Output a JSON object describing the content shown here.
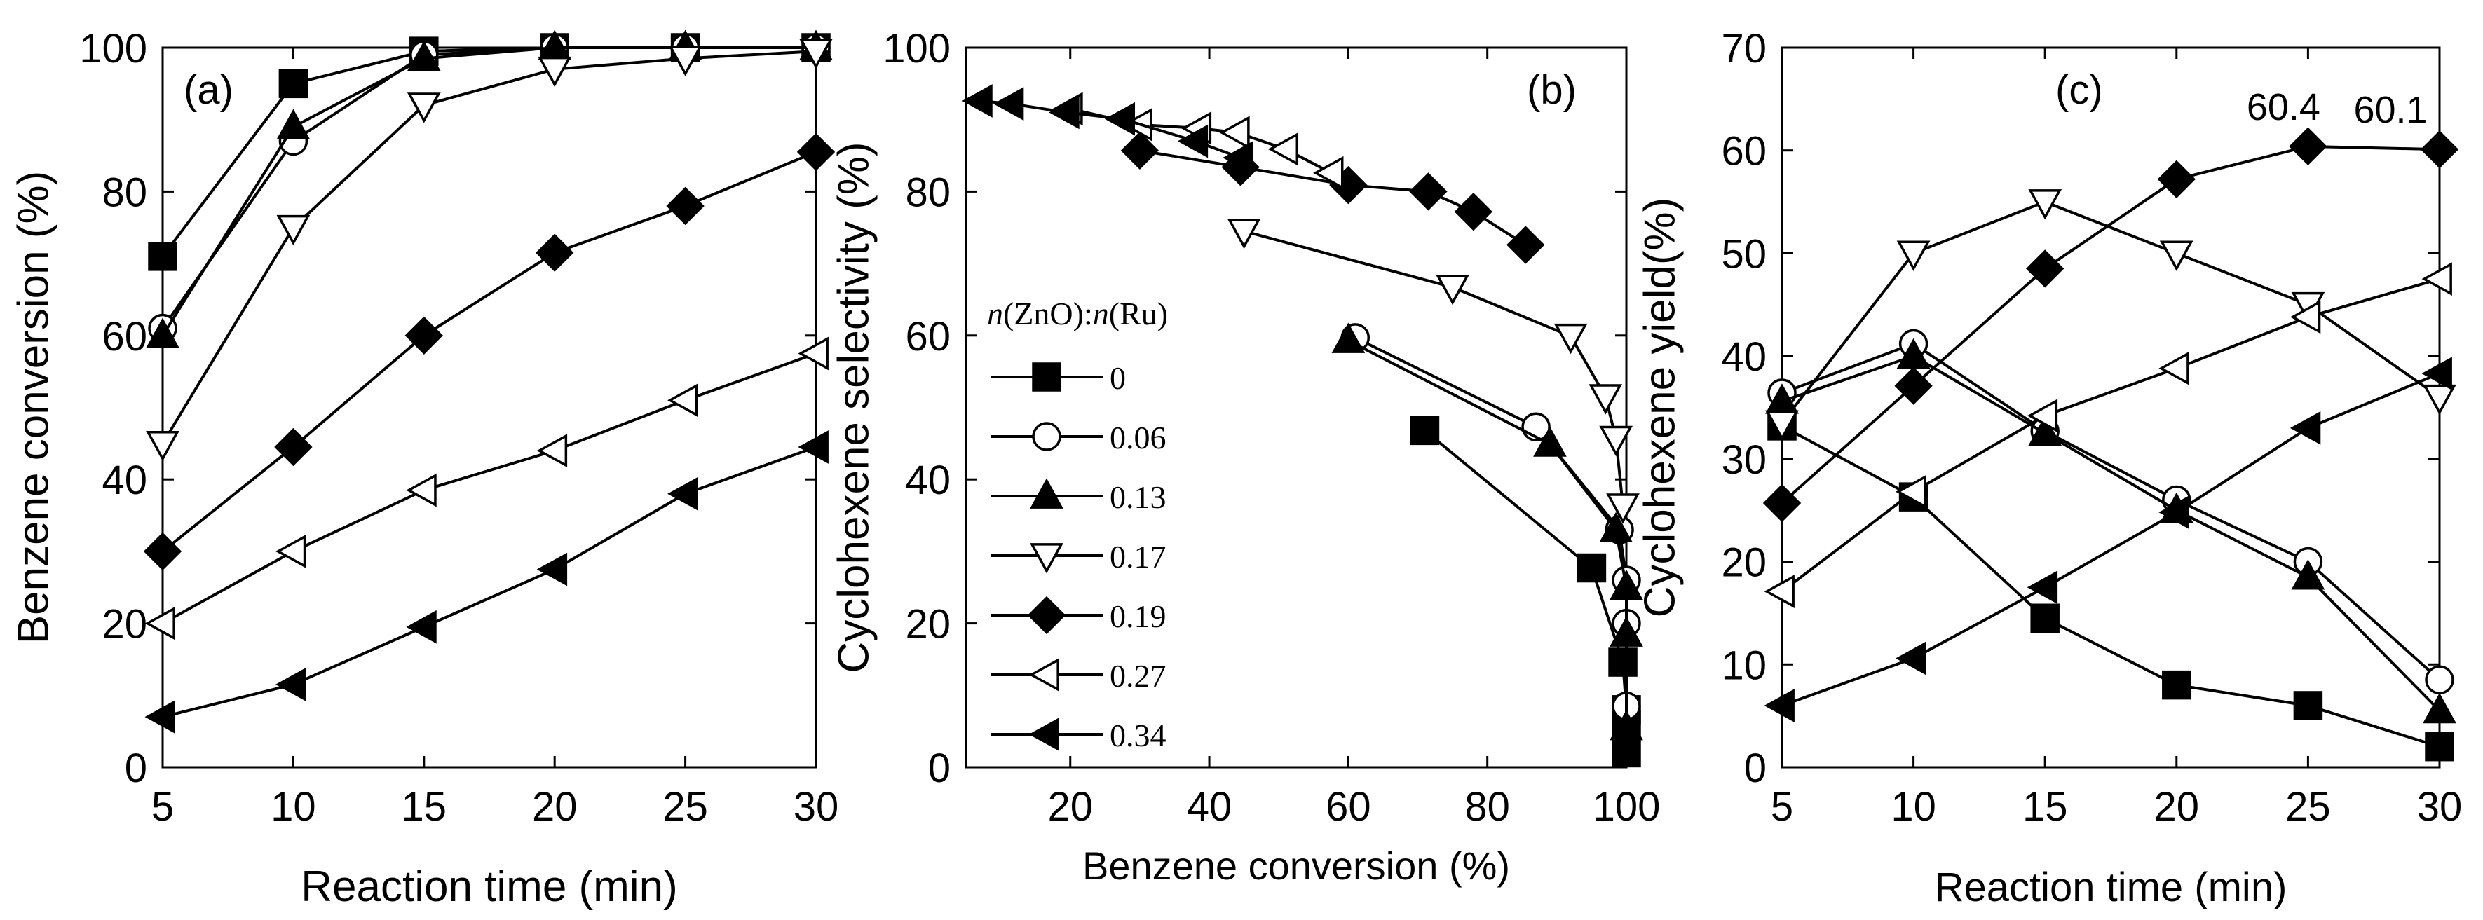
{
  "chart_data": [
    {
      "id": "a",
      "type": "line",
      "panel_label": "(a)",
      "xlabel": "Reaction time (min)",
      "ylabel": "Benzene conversion (%)",
      "xlim": [
        5,
        30
      ],
      "ylim": [
        0,
        100
      ],
      "xticks": [
        5,
        10,
        15,
        20,
        25,
        30
      ],
      "yticks": [
        0,
        20,
        40,
        60,
        80,
        100
      ],
      "x": [
        5,
        10,
        15,
        20,
        25,
        30
      ],
      "series": [
        {
          "name": "0",
          "marker": "square",
          "values": [
            71,
            95,
            99.5,
            100,
            100,
            100
          ]
        },
        {
          "name": "0.06",
          "marker": "circle",
          "values": [
            61,
            87,
            99,
            100,
            100,
            100
          ]
        },
        {
          "name": "0.13",
          "marker": "triangle-up",
          "values": [
            60,
            89,
            98.5,
            100,
            100,
            100
          ]
        },
        {
          "name": "0.17",
          "marker": "triangle-down",
          "values": [
            45,
            75,
            92,
            97,
            98.5,
            99.5
          ]
        },
        {
          "name": "0.19",
          "marker": "diamond",
          "values": [
            30,
            44.5,
            60,
            71.5,
            78,
            85.5
          ]
        },
        {
          "name": "0.27",
          "marker": "triangle-left",
          "values": [
            20,
            30,
            38.5,
            44,
            51,
            57.5
          ]
        },
        {
          "name": "0.34",
          "marker": "triangle-left-filled",
          "values": [
            7,
            11.5,
            19.5,
            27.5,
            38,
            44.5
          ]
        }
      ]
    },
    {
      "id": "b",
      "type": "line",
      "panel_label": "(b)",
      "xlabel": "Benzene conversion (%)",
      "ylabel": "Cyclohexene selectivity (%)",
      "xlim": [
        5,
        100
      ],
      "ylim": [
        0,
        100
      ],
      "xticks": [
        20,
        40,
        60,
        80,
        100
      ],
      "yticks": [
        0,
        20,
        40,
        60,
        80,
        100
      ],
      "legend_title": "n(ZnO):n(Ru)",
      "legend_position": "center-left",
      "series": [
        {
          "name": "0",
          "marker": "square",
          "points": [
            [
              71,
              46.8
            ],
            [
              95,
              27.7
            ],
            [
              99.5,
              14.6
            ],
            [
              100,
              8
            ],
            [
              100,
              6
            ],
            [
              100,
              2
            ]
          ]
        },
        {
          "name": "0.06",
          "marker": "circle",
          "points": [
            [
              61,
              59.7
            ],
            [
              87,
              47.3
            ],
            [
              99,
              33
            ],
            [
              100,
              26
            ],
            [
              100,
              20
            ],
            [
              100,
              8.5
            ]
          ]
        },
        {
          "name": "0.13",
          "marker": "triangle-up",
          "points": [
            [
              60,
              59.3
            ],
            [
              89,
              44.9
            ],
            [
              98.5,
              33
            ],
            [
              100,
              25
            ],
            [
              100,
              18.5
            ],
            [
              100,
              5.5
            ]
          ]
        },
        {
          "name": "0.17",
          "marker": "triangle-down",
          "points": [
            [
              45,
              74.5
            ],
            [
              75,
              66.7
            ],
            [
              92,
              59.9
            ],
            [
              97,
              51.5
            ],
            [
              98.5,
              45.7
            ],
            [
              99.5,
              36.3
            ]
          ]
        },
        {
          "name": "0.19",
          "marker": "diamond",
          "points": [
            [
              30,
              85.7
            ],
            [
              44.5,
              83.4
            ],
            [
              60,
              80.9
            ],
            [
              71.5,
              80
            ],
            [
              78,
              77.2
            ],
            [
              85.5,
              72.6
            ]
          ]
        },
        {
          "name": "0.27",
          "marker": "triangle-left",
          "points": [
            [
              20,
              91.5
            ],
            [
              30,
              89.3
            ],
            [
              38.5,
              88.8
            ],
            [
              44,
              88.2
            ],
            [
              51,
              85.9
            ],
            [
              57.5,
              82.6
            ]
          ]
        },
        {
          "name": "0.34",
          "marker": "triangle-left-filled",
          "points": [
            [
              7,
              92.6
            ],
            [
              11.5,
              92.2
            ],
            [
              19.5,
              91
            ],
            [
              27.5,
              90.1
            ],
            [
              38,
              87
            ],
            [
              44.5,
              84.7
            ]
          ]
        }
      ]
    },
    {
      "id": "c",
      "type": "line",
      "panel_label": "(c)",
      "xlabel": "Reaction time (min)",
      "ylabel": "Cyclohexene yield(%)",
      "xlim": [
        5,
        30
      ],
      "ylim": [
        0,
        70
      ],
      "xticks": [
        5,
        10,
        15,
        20,
        25,
        30
      ],
      "yticks": [
        0,
        10,
        20,
        30,
        40,
        50,
        60,
        70
      ],
      "x": [
        5,
        10,
        15,
        20,
        25,
        30
      ],
      "annotations": [
        {
          "text": "60.4",
          "x": 25,
          "y": 60.4
        },
        {
          "text": "60.1",
          "x": 30,
          "y": 60.1
        }
      ],
      "series": [
        {
          "name": "0",
          "marker": "square",
          "values": [
            33.2,
            26.3,
            14.5,
            8,
            6,
            2
          ]
        },
        {
          "name": "0.06",
          "marker": "circle",
          "values": [
            36.4,
            41.2,
            32.7,
            26,
            20,
            8.5
          ]
        },
        {
          "name": "0.13",
          "marker": "triangle-up",
          "values": [
            35.6,
            40,
            32.5,
            25,
            18.5,
            5.5
          ]
        },
        {
          "name": "0.17",
          "marker": "triangle-down",
          "values": [
            33.5,
            50,
            55,
            50,
            45,
            36
          ]
        },
        {
          "name": "0.19",
          "marker": "diamond",
          "values": [
            25.7,
            37.1,
            48.5,
            57.2,
            60.4,
            60.1
          ]
        },
        {
          "name": "0.27",
          "marker": "triangle-left",
          "values": [
            17.1,
            26.8,
            34.2,
            38.8,
            43.8,
            47.5
          ]
        },
        {
          "name": "0.34",
          "marker": "triangle-left-filled",
          "values": [
            6,
            10.6,
            17.5,
            24.8,
            33,
            38.3
          ]
        }
      ]
    }
  ]
}
